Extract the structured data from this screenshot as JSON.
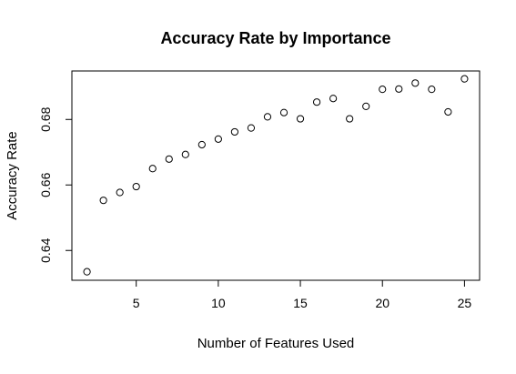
{
  "chart_data": {
    "type": "scatter",
    "title": "Accuracy Rate by Importance",
    "xlabel": "Number of Features Used",
    "ylabel": "Accuracy Rate",
    "xlim": [
      1.08,
      25.92
    ],
    "ylim": [
      0.6309,
      0.6948
    ],
    "xticks": [
      5,
      10,
      15,
      20,
      25
    ],
    "yticks": [
      0.64,
      0.66,
      0.68
    ],
    "xtick_labels": [
      "5",
      "10",
      "15",
      "20",
      "25"
    ],
    "ytick_labels": [
      "0.64",
      "0.66",
      "0.68"
    ],
    "grid": false,
    "legend": "none",
    "marker": "open-circle",
    "points": [
      {
        "x": 2,
        "y": 0.6335
      },
      {
        "x": 3,
        "y": 0.6553
      },
      {
        "x": 4,
        "y": 0.6577
      },
      {
        "x": 5,
        "y": 0.6595
      },
      {
        "x": 6,
        "y": 0.665
      },
      {
        "x": 7,
        "y": 0.6679
      },
      {
        "x": 8,
        "y": 0.6693
      },
      {
        "x": 9,
        "y": 0.6723
      },
      {
        "x": 10,
        "y": 0.674
      },
      {
        "x": 11,
        "y": 0.6762
      },
      {
        "x": 12,
        "y": 0.6774
      },
      {
        "x": 13,
        "y": 0.6808
      },
      {
        "x": 14,
        "y": 0.6821
      },
      {
        "x": 15,
        "y": 0.6802
      },
      {
        "x": 16,
        "y": 0.6853
      },
      {
        "x": 17,
        "y": 0.6864
      },
      {
        "x": 18,
        "y": 0.6802
      },
      {
        "x": 19,
        "y": 0.684
      },
      {
        "x": 20,
        "y": 0.6892
      },
      {
        "x": 21,
        "y": 0.6893
      },
      {
        "x": 22,
        "y": 0.6911
      },
      {
        "x": 23,
        "y": 0.6892
      },
      {
        "x": 24,
        "y": 0.6823
      },
      {
        "x": 25,
        "y": 0.6924
      }
    ]
  }
}
